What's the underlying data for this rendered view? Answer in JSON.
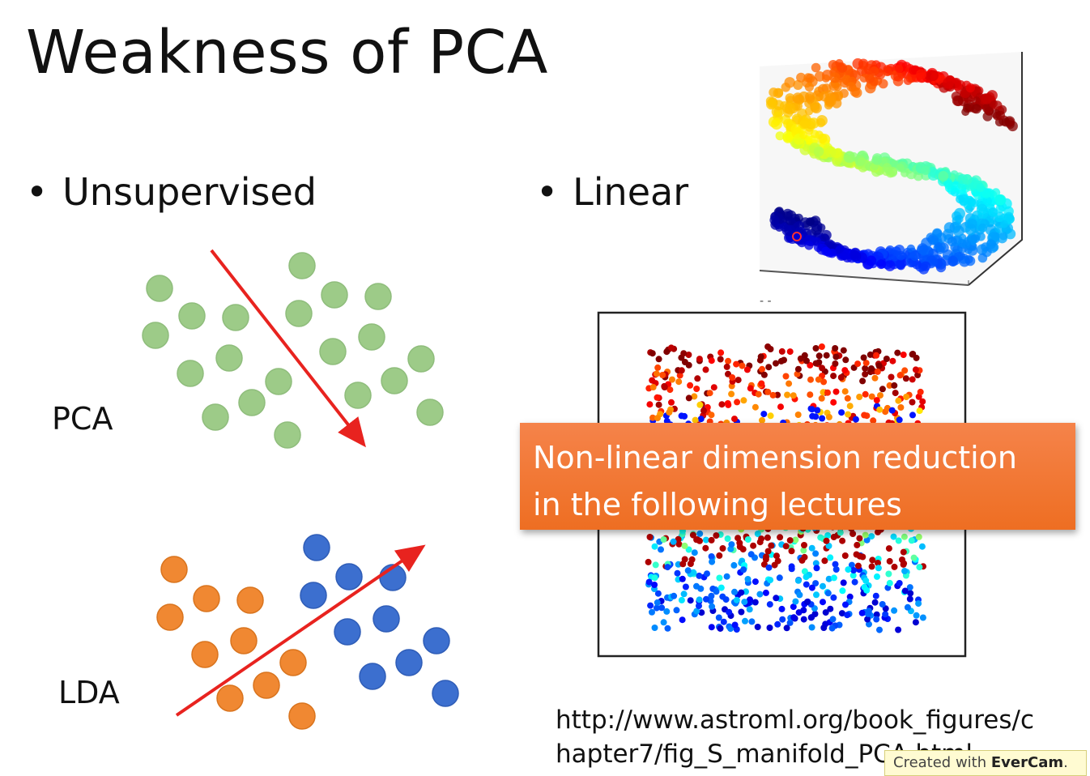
{
  "slide": {
    "title": "Weakness of PCA",
    "bullets": [
      {
        "marker": "•",
        "text": "Unsupervised"
      },
      {
        "marker": "•",
        "text": "Linear"
      }
    ],
    "pca_label": "PCA",
    "lda_label": "LDA",
    "banner_line1": "Non-linear dimension reduction",
    "banner_line2": "in the following lectures",
    "url_line1": "http://www.astroml.org/book_figures/c",
    "url_line2": "hapter7/fig_S_manifold_PCA.html",
    "watermark_prefix": "Created with",
    "watermark_brand": "EverCam",
    "watermark_suffix": "."
  },
  "colors": {
    "pca_dot": "#9dcb88",
    "lda_orange": "#f08832",
    "lda_blue": "#3c6fcf",
    "arrow": "#e8231f",
    "banner": "#f07a36"
  }
}
